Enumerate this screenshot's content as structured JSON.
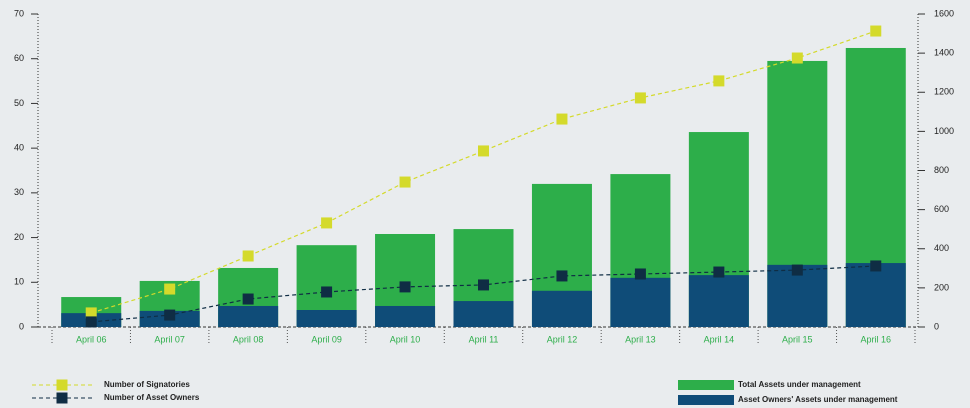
{
  "chart_data": {
    "type": "bar-line",
    "categories": [
      "April 06",
      "April 07",
      "April 08",
      "April 09",
      "April 10",
      "April 11",
      "April 12",
      "April 13",
      "April 14",
      "April 15",
      "April 16"
    ],
    "ylim": [
      0,
      70
    ],
    "yticks": [
      0,
      10,
      20,
      30,
      40,
      50,
      60,
      70
    ],
    "y2lim": [
      0,
      1600
    ],
    "y2ticks": [
      0,
      200,
      400,
      600,
      800,
      1000,
      1200,
      1400,
      1600
    ],
    "series": [
      {
        "name": "Total Assets under management",
        "type": "bar",
        "color": "#2dae4a",
        "values": [
          6.7,
          10.3,
          13.2,
          18.3,
          20.8,
          21.9,
          32.0,
          34.2,
          43.6,
          59.5,
          62.4
        ]
      },
      {
        "name": "Asset Owners' Assets under management",
        "type": "bar",
        "color": "#0f4c78",
        "values": [
          3.1,
          3.6,
          4.7,
          3.8,
          4.7,
          5.8,
          8.1,
          11.0,
          11.6,
          13.9,
          14.3
        ]
      },
      {
        "name": "Number of Signatories",
        "type": "line",
        "axis": "y2",
        "color": "#d4da2b",
        "values": [
          72,
          194,
          363,
          532,
          741,
          900,
          1063,
          1171,
          1258,
          1375,
          1513
        ]
      },
      {
        "name": "Number of Asset Owners",
        "type": "line",
        "axis": "y2",
        "color": "#0f2d44",
        "values": [
          26,
          61,
          143,
          179,
          205,
          215,
          261,
          271,
          281,
          291,
          312
        ]
      }
    ]
  }
}
